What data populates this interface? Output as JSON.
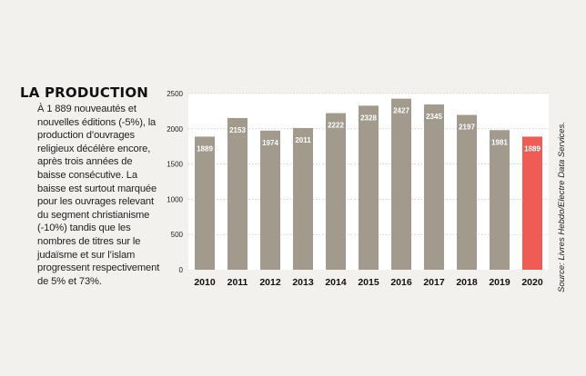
{
  "heading": "LA PRODUCTION",
  "text": "À 1 889 nouveautés et nouvelles éditions (-5%), la production d’ouvrages religieux décélère encore, après trois années de baisse consécutive. La baisse est surtout marquée pour les ouvrages relevant du segment christianisme (-10%) tandis que les nombres de titres sur le judaïsme et sur l’islam progressent respectivement de 5% et 73%.",
  "source": "Source: Livres Hebdo/Electre Data Services.",
  "colors": {
    "bar": "#a39a8e",
    "highlight": "#ef5b55",
    "plot_bg": "#ffffff",
    "grid": "#bdb8b0"
  },
  "chart_data": {
    "type": "bar",
    "categories": [
      "2010",
      "2011",
      "2012",
      "2013",
      "2014",
      "2015",
      "2016",
      "2017",
      "2018",
      "2019",
      "2020"
    ],
    "values": [
      1889,
      2153,
      1974,
      2011,
      2222,
      2328,
      2427,
      2345,
      2197,
      1981,
      1889
    ],
    "data_labels": [
      "1889",
      "2153",
      "1974",
      "2011",
      "2222",
      "2328",
      "2427",
      "2345",
      "2197",
      "1981",
      "1889"
    ],
    "highlight_index": 10,
    "yticks": [
      0,
      500,
      1000,
      1500,
      2000,
      2500
    ],
    "ylim": [
      0,
      2500
    ],
    "title": "",
    "xlabel": "",
    "ylabel": "",
    "grid": true
  }
}
